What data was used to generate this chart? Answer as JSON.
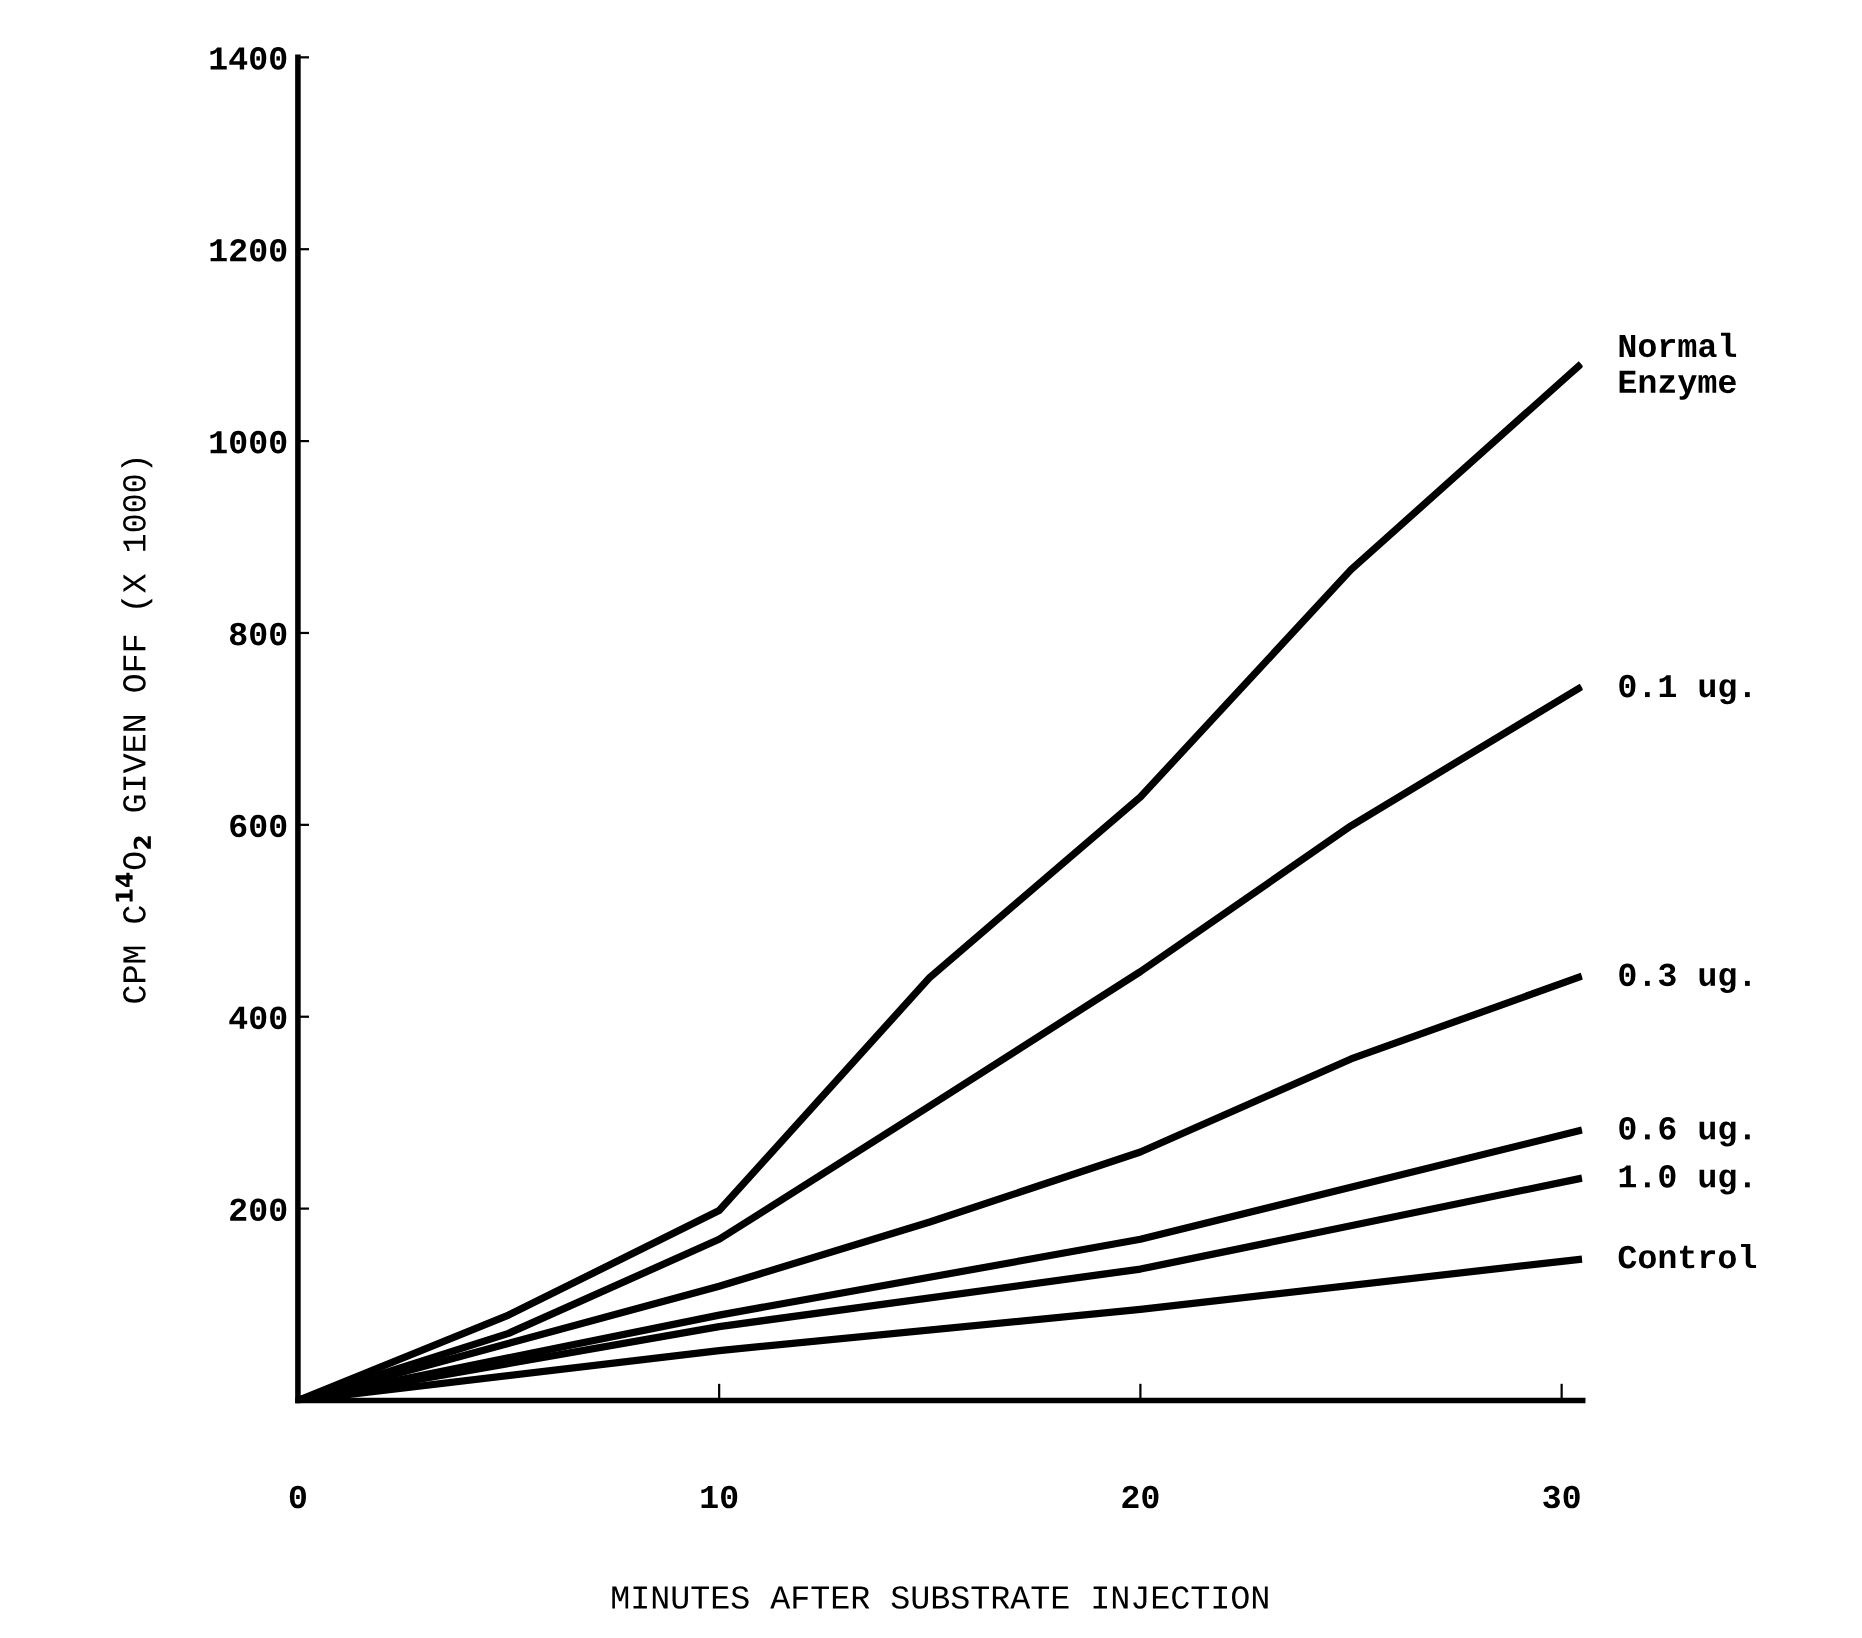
{
  "chart_data": {
    "type": "line",
    "xlabel": "MINUTES AFTER SUBSTRATE INJECTION",
    "ylabel": "CPM C$^{14}$O$_{2}$ GIVEN OFF (X 1000)",
    "xlim": [
      0,
      30.5
    ],
    "ylim": [
      0,
      1400
    ],
    "xticks": [
      0,
      10,
      20,
      30
    ],
    "yticks": [
      200,
      400,
      600,
      800,
      1000,
      1200,
      1400
    ],
    "grid": false,
    "legend": false,
    "marker": "none",
    "line_style": "solid",
    "series": [
      {
        "name": "Normal\nEnzyme",
        "color": "#000000",
        "x": [
          0,
          5,
          10,
          15,
          20,
          25,
          30.4
        ],
        "values": [
          0,
          89,
          198,
          441,
          629,
          866,
          1078
        ]
      },
      {
        "name": "0.1 ug.",
        "color": "#000000",
        "x": [
          0,
          5,
          10,
          15,
          20,
          25,
          30.4
        ],
        "values": [
          0,
          70,
          168,
          307,
          447,
          599,
          742
        ]
      },
      {
        "name": "0.3 ug.",
        "color": "#000000",
        "x": [
          0,
          10,
          15,
          20,
          25,
          30.4
        ],
        "values": [
          0,
          119,
          186,
          259,
          356,
          441
        ]
      },
      {
        "name": "0.6 ug.",
        "color": "#000000",
        "x": [
          0,
          10,
          20,
          30.4
        ],
        "values": [
          0,
          89,
          168,
          281
        ]
      },
      {
        "name": "1.0 ug.",
        "color": "#000000",
        "x": [
          0,
          10,
          20,
          30.4
        ],
        "values": [
          0,
          77,
          137,
          231
        ]
      },
      {
        "name": "Control",
        "color": "#000000",
        "x": [
          0,
          10,
          20,
          30.4
        ],
        "values": [
          0,
          52,
          95,
          147
        ]
      }
    ]
  }
}
